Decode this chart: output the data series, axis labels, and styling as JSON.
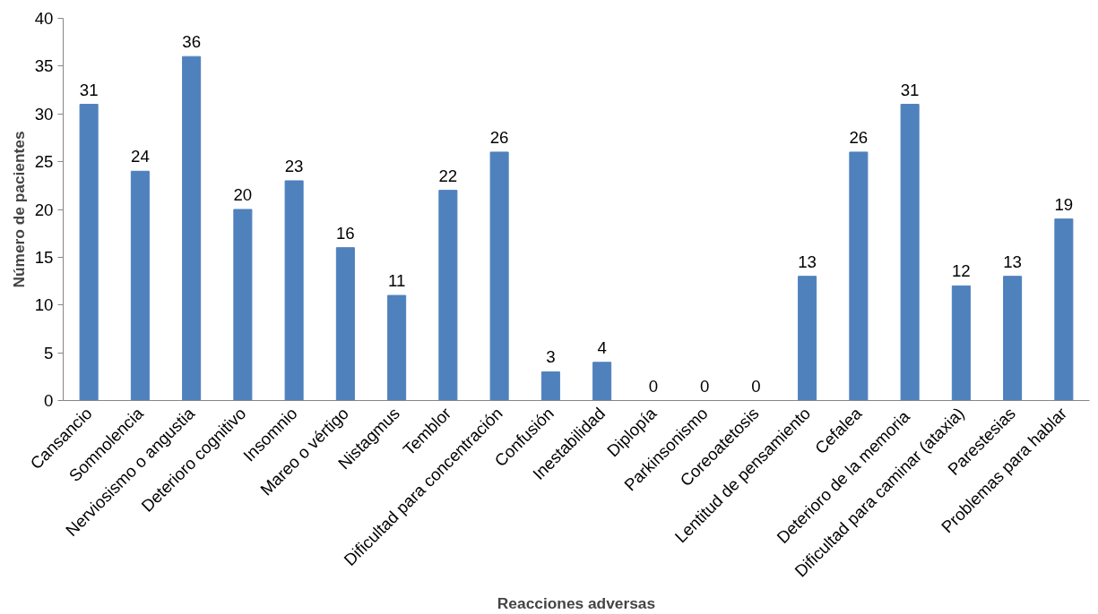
{
  "chart_data": {
    "type": "bar",
    "xlabel": "Reacciones adversas",
    "ylabel": "Número de pacientes",
    "categories": [
      "Cansancio",
      "Somnolencia",
      "Nerviosismo o angustia",
      "Deterioro cognitivo",
      "Insomnio",
      "Mareo o vértigo",
      "Nistagmus",
      "Temblor",
      "Dificultad para concentración",
      "Confusión",
      "Inestabilidad",
      "Diplopía",
      "Parkinsonismo",
      "Coreoatetosis",
      "Lentitud de pensamiento",
      "Cefalea",
      "Deterioro de  la memoria",
      "Dificultad para caminar (ataxia)",
      "Parestesias",
      "Problemas para hablar"
    ],
    "values": [
      31,
      24,
      36,
      20,
      23,
      16,
      11,
      22,
      26,
      3,
      4,
      0,
      0,
      0,
      13,
      26,
      31,
      12,
      13,
      19
    ],
    "color": "#4f81bd",
    "ylim": [
      0,
      40
    ],
    "yticks": [
      0,
      5,
      10,
      15,
      20,
      25,
      30,
      35,
      40
    ],
    "grid": false,
    "data_labels": true
  }
}
